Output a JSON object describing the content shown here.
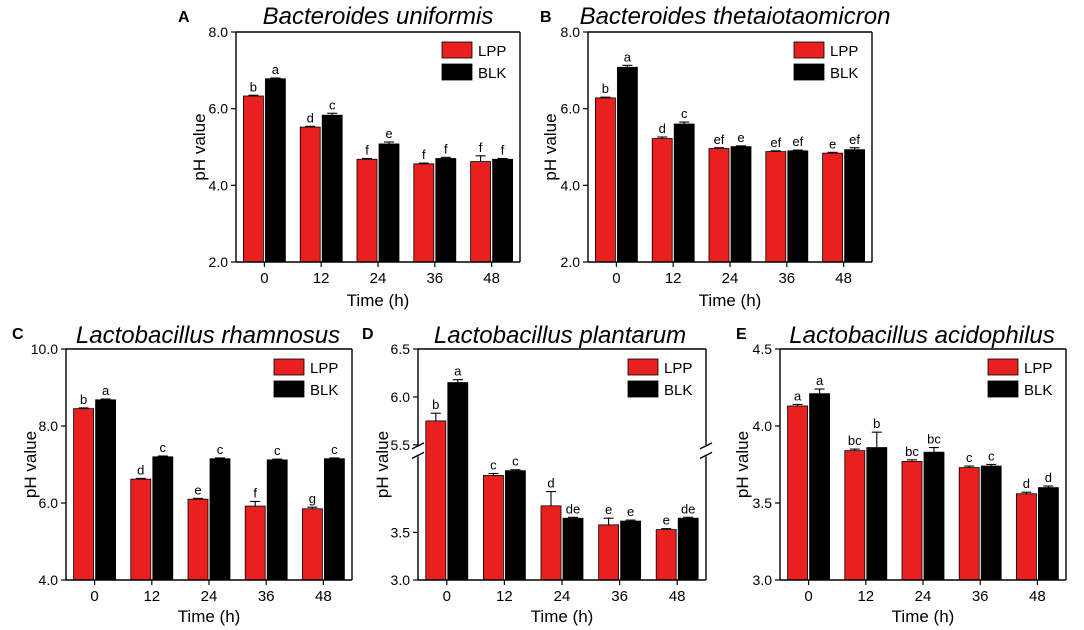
{
  "colors": {
    "LPP": "#e8201f",
    "BLK": "#000000"
  },
  "chart_data": [
    {
      "panel": "A",
      "type": "bar",
      "title": "Bacteroides uniformis",
      "xlabel": "Time (h)",
      "ylabel": "pH value",
      "categories": [
        "0",
        "12",
        "24",
        "36",
        "48"
      ],
      "ylim": [
        2.0,
        8.0
      ],
      "yticks": [
        "2.0",
        "4.0",
        "6.0",
        "8.0"
      ],
      "ytick_values": [
        2,
        4,
        6,
        8
      ],
      "legend": [
        "LPP",
        "BLK"
      ],
      "legend_position": "top-right",
      "series": [
        {
          "name": "LPP",
          "values": [
            6.33,
            5.52,
            4.68,
            4.56,
            4.62
          ],
          "errors": [
            0.02,
            0.02,
            0.02,
            0.02,
            0.15
          ],
          "letters": [
            "b",
            "d",
            "f",
            "f",
            "f"
          ]
        },
        {
          "name": "BLK",
          "values": [
            6.78,
            5.83,
            5.08,
            4.7,
            4.68
          ],
          "errors": [
            0.02,
            0.05,
            0.05,
            0.03,
            0.02
          ],
          "letters": [
            "a",
            "c",
            "e",
            "f",
            "f"
          ]
        }
      ]
    },
    {
      "panel": "B",
      "type": "bar",
      "title": "Bacteroides thetaiotaomicron",
      "xlabel": "Time (h)",
      "ylabel": "pH value",
      "categories": [
        "0",
        "12",
        "24",
        "36",
        "48"
      ],
      "ylim": [
        2.0,
        8.0
      ],
      "yticks": [
        "2.0",
        "4.0",
        "6.0",
        "8.0"
      ],
      "ytick_values": [
        2,
        4,
        6,
        8
      ],
      "legend": [
        "LPP",
        "BLK"
      ],
      "legend_position": "top-right",
      "series": [
        {
          "name": "LPP",
          "values": [
            6.28,
            5.22,
            4.96,
            4.88,
            4.84
          ],
          "errors": [
            0.02,
            0.04,
            0.02,
            0.02,
            0.02
          ],
          "letters": [
            "b",
            "d",
            "ef",
            "ef",
            "e"
          ]
        },
        {
          "name": "BLK",
          "values": [
            7.08,
            5.6,
            5.01,
            4.9,
            4.93
          ],
          "errors": [
            0.05,
            0.05,
            0.02,
            0.02,
            0.05
          ],
          "letters": [
            "a",
            "c",
            "e",
            "ef",
            "ef"
          ]
        }
      ]
    },
    {
      "panel": "C",
      "type": "bar",
      "title": "Lactobacillus rhamnosus",
      "xlabel": "Time (h)",
      "ylabel": "pH value",
      "categories": [
        "0",
        "12",
        "24",
        "36",
        "48"
      ],
      "ylim": [
        4.0,
        10.0
      ],
      "yticks": [
        "4.0",
        "6.0",
        "8.0",
        "10.0"
      ],
      "ytick_values": [
        4,
        6,
        8,
        10
      ],
      "legend": [
        "LPP",
        "BLK"
      ],
      "legend_position": "top-right",
      "series": [
        {
          "name": "LPP",
          "values": [
            8.45,
            6.62,
            6.1,
            5.92,
            5.85
          ],
          "errors": [
            0.02,
            0.02,
            0.02,
            0.12,
            0.04
          ],
          "letters": [
            "b",
            "d",
            "e",
            "f",
            "g"
          ]
        },
        {
          "name": "BLK",
          "values": [
            8.68,
            7.2,
            7.15,
            7.12,
            7.15
          ],
          "errors": [
            0.02,
            0.02,
            0.02,
            0.02,
            0.02
          ],
          "letters": [
            "a",
            "c",
            "c",
            "c",
            "c"
          ]
        }
      ]
    },
    {
      "panel": "D",
      "type": "bar",
      "title": "Lactobacillus plantarum",
      "xlabel": "Time (h)",
      "ylabel": "pH value",
      "categories": [
        "0",
        "12",
        "24",
        "36",
        "48"
      ],
      "ylim": [
        3.0,
        6.5
      ],
      "axis_break": [
        4.3,
        5.5
      ],
      "yticks": [
        "3.0",
        "3.5",
        "5.5",
        "6.0",
        "6.5"
      ],
      "ytick_values": [
        3.0,
        3.5,
        5.5,
        6.0,
        6.5
      ],
      "legend": [
        "LPP",
        "BLK"
      ],
      "legend_position": "top-right",
      "series": [
        {
          "name": "LPP",
          "values": [
            5.75,
            4.1,
            3.78,
            3.58,
            3.53
          ],
          "errors": [
            0.08,
            0.02,
            0.15,
            0.07,
            0.01
          ],
          "letters": [
            "b",
            "c",
            "d",
            "e",
            "e"
          ]
        },
        {
          "name": "BLK",
          "values": [
            6.15,
            4.15,
            3.65,
            3.62,
            3.65
          ],
          "errors": [
            0.03,
            0.01,
            0.01,
            0.01,
            0.01
          ],
          "letters": [
            "a",
            "c",
            "de",
            "e",
            "de"
          ]
        }
      ]
    },
    {
      "panel": "E",
      "type": "bar",
      "title": "Lactobacillus acidophilus",
      "xlabel": "Time (h)",
      "ylabel": "pH value",
      "categories": [
        "0",
        "12",
        "24",
        "36",
        "48"
      ],
      "ylim": [
        3.0,
        4.5
      ],
      "yticks": [
        "3.0",
        "3.5",
        "4.0",
        "4.5"
      ],
      "ytick_values": [
        3.0,
        3.5,
        4.0,
        4.5
      ],
      "legend": [
        "LPP",
        "BLK"
      ],
      "legend_position": "top-right",
      "series": [
        {
          "name": "LPP",
          "values": [
            4.13,
            3.84,
            3.77,
            3.73,
            3.56
          ],
          "errors": [
            0.01,
            0.01,
            0.01,
            0.01,
            0.01
          ],
          "letters": [
            "a",
            "bc",
            "bc",
            "c",
            "d"
          ]
        },
        {
          "name": "BLK",
          "values": [
            4.21,
            3.86,
            3.83,
            3.74,
            3.6
          ],
          "errors": [
            0.03,
            0.1,
            0.03,
            0.01,
            0.01
          ],
          "letters": [
            "a",
            "b",
            "bc",
            "c",
            "d"
          ]
        }
      ]
    }
  ]
}
